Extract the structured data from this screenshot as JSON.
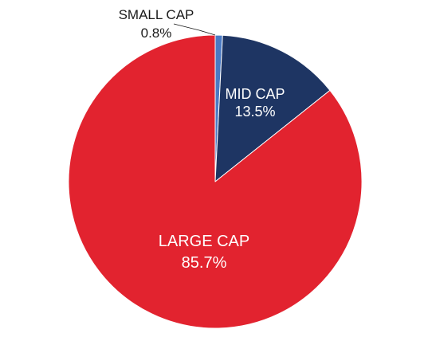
{
  "chart_data": {
    "type": "pie",
    "start_angle_deg": 0,
    "direction": "clockwise",
    "slices": [
      {
        "label": "SMALL CAP",
        "value": 0.8,
        "value_label": "0.8%",
        "color": "#4a7ac4",
        "label_color": "#1a1a1a",
        "label_side": "outside"
      },
      {
        "label": "MID CAP",
        "value": 13.5,
        "value_label": "13.5%",
        "color": "#1e3563",
        "label_color": "#ffffff",
        "label_side": "inside"
      },
      {
        "label": "LARGE CAP",
        "value": 85.7,
        "value_label": "85.7%",
        "color": "#e2232f",
        "label_color": "#ffffff",
        "label_side": "inside"
      }
    ],
    "slice_border_color": "#ffffff"
  }
}
